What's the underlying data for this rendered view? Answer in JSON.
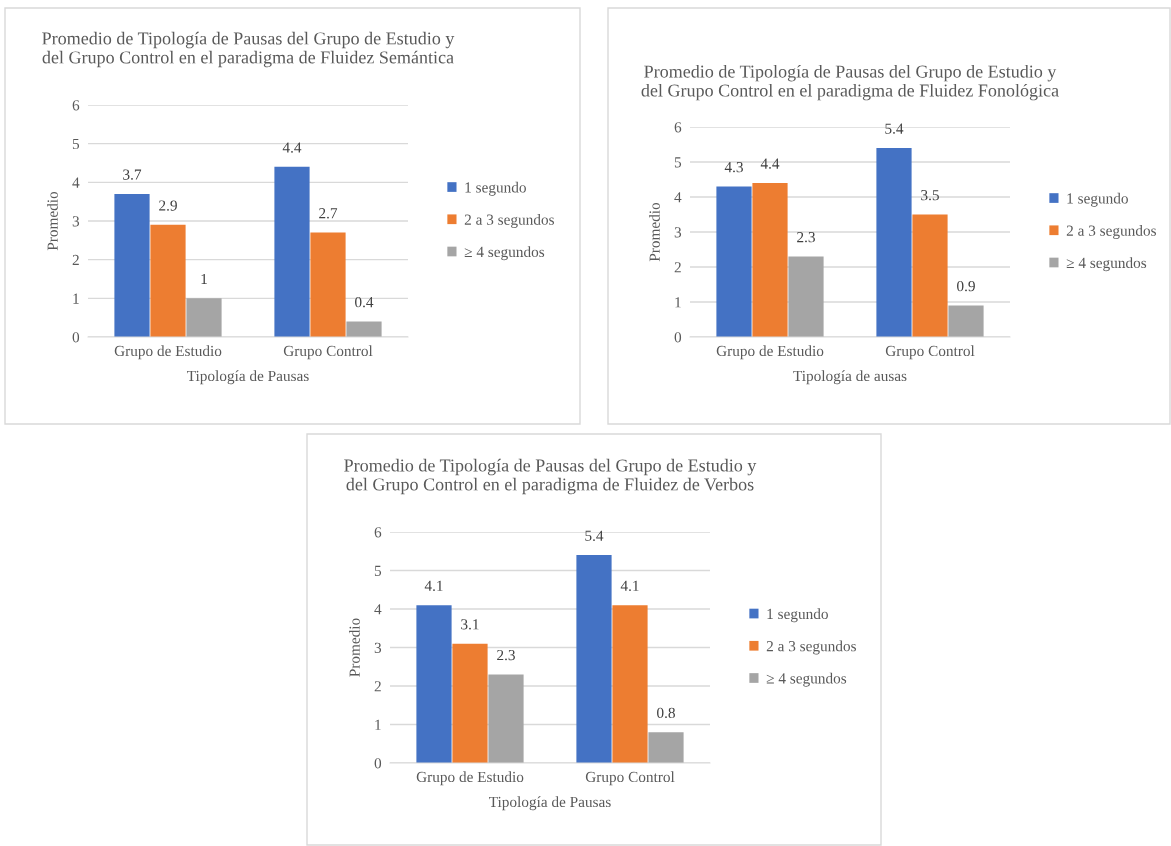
{
  "chart_data": [
    {
      "type": "bar",
      "title": "Promedio de Tipología de Pausas del Grupo de Estudio y del Grupo Control en el paradigma de Fluidez Semántica",
      "xlabel": "Tipología de Pausas",
      "ylabel": "Promedio",
      "categories": [
        "Grupo de Estudio",
        "Grupo Control"
      ],
      "series": [
        {
          "name": "1 segundo",
          "color": "#4472c4",
          "values": [
            3.7,
            4.4
          ]
        },
        {
          "name": "2 a 3 segundos",
          "color": "#ed7d31",
          "values": [
            2.9,
            2.7
          ]
        },
        {
          "name": "≥ 4 segundos",
          "color": "#a5a5a5",
          "values": [
            1,
            0.4
          ]
        }
      ],
      "ylim": [
        0,
        6
      ],
      "yticks": [
        0,
        1,
        2,
        3,
        4,
        5,
        6
      ],
      "grid": "y",
      "legend": "right",
      "data_labels": true
    },
    {
      "type": "bar",
      "title": "Promedio de Tipología de Pausas del Grupo de Estudio y del Grupo Control en el paradigma de Fluidez Fonológica",
      "xlabel": "Tipología de ausas",
      "ylabel": "Promedio",
      "categories": [
        "Grupo de Estudio",
        "Grupo Control"
      ],
      "series": [
        {
          "name": "1 segundo",
          "color": "#4472c4",
          "values": [
            4.3,
            5.4
          ]
        },
        {
          "name": "2 a 3 segundos",
          "color": "#ed7d31",
          "values": [
            4.4,
            3.5
          ]
        },
        {
          "name": "≥ 4 segundos",
          "color": "#a5a5a5",
          "values": [
            2.3,
            0.9
          ]
        }
      ],
      "ylim": [
        0,
        6
      ],
      "yticks": [
        0,
        1,
        2,
        3,
        4,
        5,
        6
      ],
      "grid": "y",
      "legend": "right",
      "data_labels": true
    },
    {
      "type": "bar",
      "title": "Promedio de Tipología de Pausas del Grupo de Estudio y del Grupo Control en el paradigma de Fluidez de Verbos",
      "xlabel": "Tipología de Pausas",
      "ylabel": "Promedio",
      "categories": [
        "Grupo de Estudio",
        "Grupo Control"
      ],
      "series": [
        {
          "name": "1 segundo",
          "color": "#4472c4",
          "values": [
            4.1,
            5.4
          ]
        },
        {
          "name": "2 a 3 segundos",
          "color": "#ed7d31",
          "values": [
            3.1,
            4.1
          ]
        },
        {
          "name": "≥ 4 segundos",
          "color": "#a5a5a5",
          "values": [
            2.3,
            0.8
          ]
        }
      ],
      "ylim": [
        0,
        6
      ],
      "yticks": [
        0,
        1,
        2,
        3,
        4,
        5,
        6
      ],
      "grid": "y",
      "legend": "right",
      "data_labels": true
    }
  ]
}
